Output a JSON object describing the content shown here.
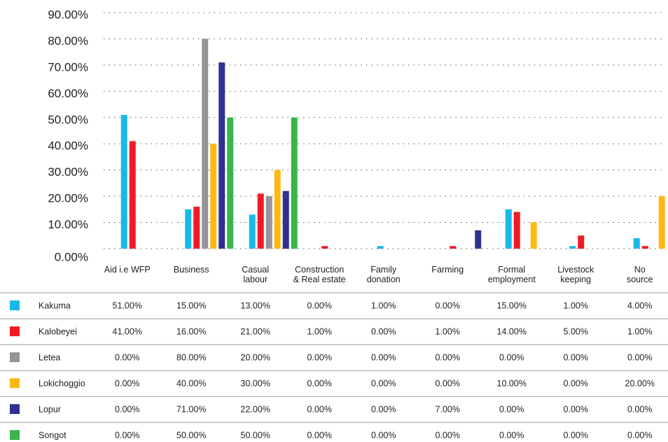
{
  "chart_data": {
    "type": "bar",
    "categories": [
      "Aid i.e WFP",
      "Business",
      "Casual\nlabour",
      "Construction\n& Real estate",
      "Family\ndonation",
      "Farming",
      "Formal\nemployment",
      "Livestock\nkeeping",
      "No\nsource"
    ],
    "series": [
      {
        "name": "Kakuma",
        "color": "#1ab7ea",
        "values": [
          51,
          15,
          13,
          0,
          1,
          0,
          15,
          1,
          4
        ],
        "value_labels": [
          "51.00%",
          "15.00%",
          "13.00%",
          "0.00%",
          "1.00%",
          "0.00%",
          "15.00%",
          "1.00%",
          "4.00%"
        ]
      },
      {
        "name": "Kalobeyei",
        "color": "#ed1c24",
        "values": [
          41,
          16,
          21,
          1,
          0,
          1,
          14,
          5,
          1
        ],
        "value_labels": [
          "41.00%",
          "16.00%",
          "21.00%",
          "1.00%",
          "0.00%",
          "1.00%",
          "14.00%",
          "5.00%",
          "1.00%"
        ]
      },
      {
        "name": "Letea",
        "color": "#939598",
        "values": [
          0,
          80,
          20,
          0,
          0,
          0,
          0,
          0,
          0
        ],
        "value_labels": [
          "0.00%",
          "80.00%",
          "20.00%",
          "0.00%",
          "0.00%",
          "0.00%",
          "0.00%",
          "0.00%",
          "0.00%"
        ]
      },
      {
        "name": "Lokichoggio",
        "color": "#fdb913",
        "values": [
          0,
          40,
          30,
          0,
          0,
          0,
          10,
          0,
          20
        ],
        "value_labels": [
          "0.00%",
          "40.00%",
          "30.00%",
          "0.00%",
          "0.00%",
          "0.00%",
          "10.00%",
          "0.00%",
          "20.00%"
        ]
      },
      {
        "name": "Lopur",
        "color": "#2e3192",
        "values": [
          0,
          71,
          22,
          0,
          0,
          7,
          0,
          0,
          0
        ],
        "value_labels": [
          "0.00%",
          "71.00%",
          "22.00%",
          "0.00%",
          "0.00%",
          "7.00%",
          "0.00%",
          "0.00%",
          "0.00%"
        ]
      },
      {
        "name": "Songot",
        "color": "#39b54a",
        "values": [
          0,
          50,
          50,
          0,
          0,
          0,
          0,
          0,
          0
        ],
        "value_labels": [
          "0.00%",
          "50.00%",
          "50.00%",
          "0.00%",
          "0.00%",
          "0.00%",
          "0.00%",
          "0.00%",
          "0.00%"
        ]
      }
    ],
    "ylim": [
      0,
      90
    ],
    "yticks": [
      {
        "value": 0,
        "label": "0.00%"
      },
      {
        "value": 10,
        "label": "10.00%"
      },
      {
        "value": 20,
        "label": "20.00%"
      },
      {
        "value": 30,
        "label": "30.00%"
      },
      {
        "value": 40,
        "label": "40.00%"
      },
      {
        "value": 50,
        "label": "50.00%"
      },
      {
        "value": 60,
        "label": "60.00%"
      },
      {
        "value": 70,
        "label": "70.00%"
      },
      {
        "value": 80,
        "label": "80.00%"
      },
      {
        "value": 90,
        "label": "90.00%"
      }
    ],
    "grid": true
  }
}
